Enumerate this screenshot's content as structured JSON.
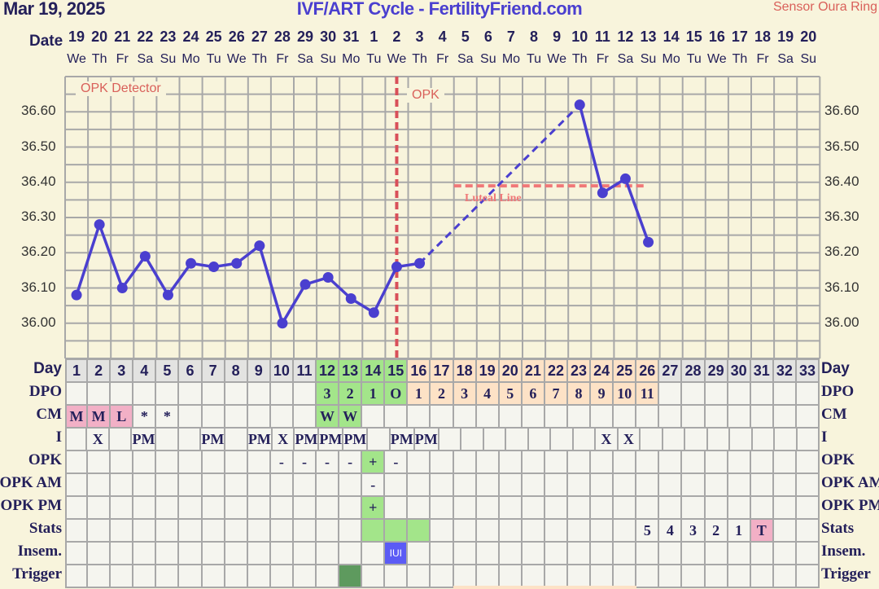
{
  "header": {
    "date": "Mar 19, 2025",
    "title": "IVF/ART Cycle - FertilityFriend.com",
    "sensor": "Sensor Oura Ring"
  },
  "dates_label": "Date",
  "dates": [
    "19",
    "20",
    "21",
    "22",
    "23",
    "24",
    "25",
    "26",
    "27",
    "28",
    "29",
    "30",
    "31",
    "1",
    "2",
    "3",
    "4",
    "5",
    "6",
    "7",
    "8",
    "9",
    "10",
    "11",
    "12",
    "13",
    "14",
    "15",
    "16",
    "17",
    "18",
    "19",
    "20"
  ],
  "weekdays": [
    "We",
    "Th",
    "Fr",
    "Sa",
    "Su",
    "Mo",
    "Tu",
    "We",
    "Th",
    "Fr",
    "Sa",
    "Su",
    "Mo",
    "Tu",
    "We",
    "Th",
    "Fr",
    "Sa",
    "Su",
    "Mo",
    "Tu",
    "We",
    "Th",
    "Fr",
    "Sa",
    "Su",
    "Mo",
    "Tu",
    "We",
    "Th",
    "Fr",
    "Sa",
    "Su"
  ],
  "colors": {
    "gray": "#e3e3e1",
    "green": "#a3e58a",
    "orange": "#fde2c6",
    "pink": "#f2b0c6",
    "blue": "#5b5bf5",
    "darkgreen": "#5e9a5e",
    "line": "#4a3fcf",
    "marker": "#d9505a",
    "luteal": "#f07878"
  },
  "chart_data": {
    "type": "line",
    "ylim": [
      35.9,
      36.7
    ],
    "y_ticks": [
      "36.00",
      "36.10",
      "36.20",
      "36.30",
      "36.40",
      "36.50",
      "36.60"
    ],
    "grid": true,
    "points": [
      {
        "day": 1,
        "temp": 36.08
      },
      {
        "day": 2,
        "temp": 36.28
      },
      {
        "day": 3,
        "temp": 36.1
      },
      {
        "day": 4,
        "temp": 36.19
      },
      {
        "day": 5,
        "temp": 36.08
      },
      {
        "day": 6,
        "temp": 36.17
      },
      {
        "day": 7,
        "temp": 36.16
      },
      {
        "day": 8,
        "temp": 36.17
      },
      {
        "day": 9,
        "temp": 36.22
      },
      {
        "day": 10,
        "temp": 36.0
      },
      {
        "day": 11,
        "temp": 36.11
      },
      {
        "day": 12,
        "temp": 36.13
      },
      {
        "day": 13,
        "temp": 36.07
      },
      {
        "day": 14,
        "temp": 36.03
      },
      {
        "day": 15,
        "temp": 36.16
      },
      {
        "day": 16,
        "temp": 36.17
      },
      {
        "day": 23,
        "temp": 36.62
      },
      {
        "day": 24,
        "temp": 36.37
      },
      {
        "day": 25,
        "temp": 36.41
      },
      {
        "day": 26,
        "temp": 36.23
      }
    ],
    "dashed_gap": [
      16,
      23
    ],
    "opk_line_day": 15,
    "opk_label": "OPK",
    "detector_label": "OPK Detector",
    "luteal_line": {
      "temp": 36.39,
      "from_day": 18,
      "to_day": 26,
      "label": "Luteal Line"
    }
  },
  "table": {
    "rows": [
      {
        "label": "Day",
        "cells": [
          "1",
          "2",
          "3",
          "4",
          "5",
          "6",
          "7",
          "8",
          "9",
          "10",
          "11",
          "12",
          "13",
          "14",
          "15",
          "16",
          "17",
          "18",
          "19",
          "20",
          "21",
          "22",
          "23",
          "24",
          "25",
          "26",
          "27",
          "28",
          "29",
          "30",
          "31",
          "32",
          "33"
        ],
        "fills": [
          "gray",
          "gray",
          "gray",
          "gray",
          "gray",
          "gray",
          "gray",
          "gray",
          "gray",
          "gray",
          "gray",
          "green",
          "green",
          "green",
          "green",
          "orange",
          "orange",
          "orange",
          "orange",
          "orange",
          "orange",
          "orange",
          "orange",
          "orange",
          "orange",
          "orange",
          "gray",
          "gray",
          "gray",
          "gray",
          "gray",
          "gray",
          "gray"
        ]
      },
      {
        "label": "DPO",
        "cells": [
          "",
          "",
          "",
          "",
          "",
          "",
          "",
          "",
          "",
          "",
          "",
          "3",
          "2",
          "1",
          "O",
          "1",
          "2",
          "3",
          "4",
          "5",
          "6",
          "7",
          "8",
          "9",
          "10",
          "11",
          "",
          "",
          "",
          "",
          "",
          "",
          ""
        ],
        "fills": [
          "",
          "",
          "",
          "",
          "",
          "",
          "",
          "",
          "",
          "",
          "",
          "green",
          "green",
          "green",
          "green",
          "orange",
          "orange",
          "orange",
          "orange",
          "orange",
          "orange",
          "orange",
          "orange",
          "orange",
          "orange",
          "orange",
          "",
          "",
          "",
          "",
          "",
          "",
          ""
        ]
      },
      {
        "label": "CM",
        "cells": [
          "M",
          "M",
          "L",
          "*",
          "*",
          "",
          "",
          "",
          "",
          "",
          "",
          "W",
          "W",
          "",
          "",
          "",
          "",
          "",
          "",
          "",
          "",
          "",
          "",
          "",
          "",
          "",
          "",
          "",
          "",
          "",
          "",
          "",
          ""
        ],
        "fills": [
          "pink",
          "pink",
          "pink",
          "",
          "",
          "",
          "",
          "",
          "",
          "",
          "",
          "green",
          "green",
          "",
          "",
          "",
          "",
          "",
          "",
          "",
          "",
          "",
          "",
          "",
          "",
          "",
          "",
          "",
          "",
          "",
          "",
          "",
          ""
        ]
      },
      {
        "label": "I",
        "cells": [
          "",
          "X",
          "",
          "PM",
          "",
          "",
          "PM",
          "",
          "PM",
          "X",
          "PM",
          "PM",
          "PM",
          "",
          "PM",
          "PM",
          "",
          "",
          "",
          "",
          "",
          "",
          "",
          "X",
          "X",
          "",
          "",
          "",
          "",
          "",
          "",
          "",
          ""
        ],
        "fills": []
      },
      {
        "label": "OPK",
        "cells": [
          "",
          "",
          "",
          "",
          "",
          "",
          "",
          "",
          "",
          "-",
          "-",
          "-",
          "-",
          "+",
          "-",
          "",
          "",
          "",
          "",
          "",
          "",
          "",
          "",
          "",
          "",
          "",
          "",
          "",
          "",
          "",
          "",
          "",
          ""
        ],
        "fills": [
          "",
          "",
          "",
          "",
          "",
          "",
          "",
          "",
          "",
          "",
          "",
          "",
          "",
          "green"
        ]
      },
      {
        "label": "OPK AM",
        "cells": [
          "",
          "",
          "",
          "",
          "",
          "",
          "",
          "",
          "",
          "",
          "",
          "",
          "",
          "-",
          "",
          "",
          "",
          "",
          "",
          "",
          "",
          "",
          "",
          "",
          "",
          "",
          "",
          "",
          "",
          "",
          "",
          "",
          ""
        ],
        "fills": []
      },
      {
        "label": "OPK PM",
        "cells": [
          "",
          "",
          "",
          "",
          "",
          "",
          "",
          "",
          "",
          "",
          "",
          "",
          "",
          "+",
          "",
          "",
          "",
          "",
          "",
          "",
          "",
          "",
          "",
          "",
          "",
          "",
          "",
          "",
          "",
          "",
          "",
          "",
          ""
        ],
        "fills": [
          "",
          "",
          "",
          "",
          "",
          "",
          "",
          "",
          "",
          "",
          "",
          "",
          "",
          "green"
        ]
      },
      {
        "label": "Stats",
        "cells": [
          "",
          "",
          "",
          "",
          "",
          "",
          "",
          "",
          "",
          "",
          "",
          "",
          "",
          "",
          "",
          "",
          "",
          "",
          "",
          "",
          "",
          "",
          "",
          "",
          "",
          "5",
          "4",
          "3",
          "2",
          "1",
          "T",
          "",
          ""
        ],
        "fills": [
          "",
          "",
          "",
          "",
          "",
          "",
          "",
          "",
          "",
          "",
          "",
          "",
          "",
          "green",
          "green",
          "green",
          "",
          "",
          "",
          "",
          "",
          "",
          "",
          "",
          "",
          "",
          "",
          "",
          "",
          "",
          "pink",
          "",
          ""
        ]
      },
      {
        "label": "Insem.",
        "cells": [
          "",
          "",
          "",
          "",
          "",
          "",
          "",
          "",
          "",
          "",
          "",
          "",
          "",
          "",
          "IUI",
          "",
          "",
          "",
          "",
          "",
          "",
          "",
          "",
          "",
          "",
          "",
          "",
          "",
          "",
          "",
          "",
          "",
          ""
        ],
        "fills": [
          "",
          "",
          "",
          "",
          "",
          "",
          "",
          "",
          "",
          "",
          "",
          "",
          "",
          "",
          "blue"
        ]
      },
      {
        "label": "Trigger",
        "cells": [
          "",
          "",
          "",
          "",
          "",
          "",
          "",
          "",
          "",
          "",
          "",
          "",
          "",
          "",
          "",
          "",
          "",
          "",
          "",
          "",
          "",
          "",
          "",
          "",
          "",
          "",
          "",
          "",
          "",
          "",
          "",
          "",
          ""
        ],
        "fills": [
          "",
          "",
          "",
          "",
          "",
          "",
          "",
          "",
          "",
          "",
          "",
          "",
          "darkgreen"
        ]
      }
    ]
  }
}
